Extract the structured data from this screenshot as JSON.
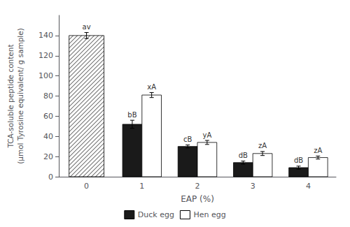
{
  "chart_data": {
    "type": "bar",
    "categories": [
      "0",
      "1",
      "2",
      "3",
      "4"
    ],
    "series": [
      {
        "name": "Duck egg",
        "color": "#1a1a1a",
        "values": [
          140,
          52,
          30,
          14,
          9
        ],
        "errors": [
          3,
          4,
          1.5,
          1.5,
          1.5
        ],
        "labels": [
          "av",
          "bB",
          "cB",
          "dB",
          "dB"
        ]
      },
      {
        "name": "Hen egg",
        "color": "#ffffff",
        "values": [
          null,
          81,
          34,
          23,
          19
        ],
        "errors": [
          null,
          2.5,
          2,
          2,
          1.5
        ],
        "labels": [
          null,
          "xA",
          "yA",
          "zA",
          "zA"
        ]
      }
    ],
    "xlabel": "EAP (%)",
    "ylabel": "TCA-soluble peptide content\n(µmol Tyrosine equivalent/ g sample)",
    "ylim": [
      0,
      160
    ],
    "yticks": [
      0,
      20,
      40,
      60,
      80,
      100,
      120,
      140
    ],
    "grid": false,
    "legend": "bottom"
  }
}
